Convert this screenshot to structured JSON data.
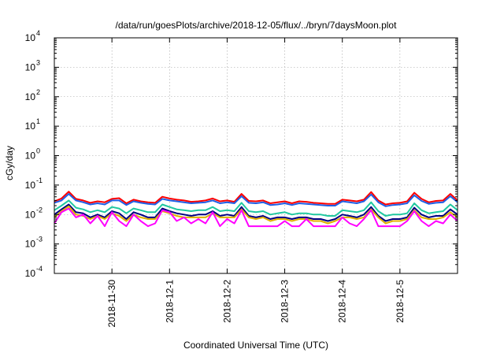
{
  "chart_data": {
    "type": "line",
    "title": "/data/run/goesPlots/archive/2018-12-05/flux/../bryn/7daysMoon.plot",
    "xlabel": "Coordinated Universal Time (UTC)",
    "ylabel": "cGy/day",
    "yscale": "log",
    "ylim": [
      0.0001,
      10000
    ],
    "y_ticks": [
      {
        "value": 0.0001,
        "base": "10",
        "exp": "-4"
      },
      {
        "value": 0.001,
        "base": "10",
        "exp": "-3"
      },
      {
        "value": 0.01,
        "base": "10",
        "exp": "-2"
      },
      {
        "value": 0.1,
        "base": "10",
        "exp": "-1"
      },
      {
        "value": 1,
        "base": "10",
        "exp": "0"
      },
      {
        "value": 10,
        "base": "10",
        "exp": "1"
      },
      {
        "value": 100,
        "base": "10",
        "exp": "2"
      },
      {
        "value": 1000,
        "base": "10",
        "exp": "3"
      },
      {
        "value": 10000,
        "base": "10",
        "exp": "4"
      }
    ],
    "xlim": [
      "2018-11-29T00:00",
      "2018-12-06T00:00"
    ],
    "x_ticks": [
      {
        "value": "2018-11-30T00:00",
        "label": "2018-11-30"
      },
      {
        "value": "2018-12-01T00:00",
        "label": "2018-12-1"
      },
      {
        "value": "2018-12-02T00:00",
        "label": "2018-12-2"
      },
      {
        "value": "2018-12-03T00:00",
        "label": "2018-12-3"
      },
      {
        "value": "2018-12-04T00:00",
        "label": "2018-12-4"
      },
      {
        "value": "2018-12-05T00:00",
        "label": "2018-12-5"
      }
    ],
    "grid": true,
    "x": [
      "2018-11-29T00:00",
      "2018-11-29T03:00",
      "2018-11-29T06:00",
      "2018-11-29T09:00",
      "2018-11-29T12:00",
      "2018-11-29T15:00",
      "2018-11-29T18:00",
      "2018-11-29T21:00",
      "2018-11-30T00:00",
      "2018-11-30T03:00",
      "2018-11-30T06:00",
      "2018-11-30T09:00",
      "2018-11-30T12:00",
      "2018-11-30T15:00",
      "2018-11-30T18:00",
      "2018-11-30T21:00",
      "2018-12-01T00:00",
      "2018-12-01T03:00",
      "2018-12-01T06:00",
      "2018-12-01T09:00",
      "2018-12-01T12:00",
      "2018-12-01T15:00",
      "2018-12-01T18:00",
      "2018-12-01T21:00",
      "2018-12-02T00:00",
      "2018-12-02T03:00",
      "2018-12-02T06:00",
      "2018-12-02T09:00",
      "2018-12-02T12:00",
      "2018-12-02T15:00",
      "2018-12-02T18:00",
      "2018-12-02T21:00",
      "2018-12-03T00:00",
      "2018-12-03T03:00",
      "2018-12-03T06:00",
      "2018-12-03T09:00",
      "2018-12-03T12:00",
      "2018-12-03T15:00",
      "2018-12-03T18:00",
      "2018-12-03T21:00",
      "2018-12-04T00:00",
      "2018-12-04T03:00",
      "2018-12-04T06:00",
      "2018-12-04T09:00",
      "2018-12-04T12:00",
      "2018-12-04T15:00",
      "2018-12-04T18:00",
      "2018-12-04T21:00",
      "2018-12-05T00:00",
      "2018-12-05T03:00",
      "2018-12-05T06:00",
      "2018-12-05T09:00",
      "2018-12-05T12:00",
      "2018-12-05T15:00",
      "2018-12-05T18:00",
      "2018-12-05T21:00",
      "2018-12-06T00:00"
    ],
    "series": [
      {
        "color": "#ff0000",
        "values": [
          0.028,
          0.035,
          0.06,
          0.034,
          0.03,
          0.025,
          0.028,
          0.026,
          0.034,
          0.036,
          0.024,
          0.032,
          0.028,
          0.026,
          0.025,
          0.04,
          0.035,
          0.032,
          0.03,
          0.027,
          0.028,
          0.03,
          0.035,
          0.028,
          0.03,
          0.027,
          0.05,
          0.029,
          0.028,
          0.03,
          0.024,
          0.026,
          0.028,
          0.024,
          0.028,
          0.027,
          0.025,
          0.024,
          0.023,
          0.023,
          0.032,
          0.03,
          0.028,
          0.032,
          0.058,
          0.03,
          0.022,
          0.024,
          0.025,
          0.028,
          0.055,
          0.034,
          0.026,
          0.029,
          0.03,
          0.05,
          0.03
        ]
      },
      {
        "color": "#1e5fe6",
        "values": [
          0.025,
          0.03,
          0.05,
          0.03,
          0.026,
          0.022,
          0.024,
          0.022,
          0.03,
          0.03,
          0.021,
          0.028,
          0.025,
          0.023,
          0.022,
          0.034,
          0.03,
          0.028,
          0.026,
          0.024,
          0.025,
          0.026,
          0.03,
          0.024,
          0.026,
          0.024,
          0.042,
          0.025,
          0.024,
          0.026,
          0.021,
          0.022,
          0.024,
          0.021,
          0.024,
          0.023,
          0.022,
          0.021,
          0.02,
          0.02,
          0.028,
          0.026,
          0.024,
          0.028,
          0.048,
          0.026,
          0.019,
          0.021,
          0.022,
          0.024,
          0.045,
          0.029,
          0.023,
          0.025,
          0.026,
          0.042,
          0.026
        ]
      },
      {
        "color": "#20c8a0",
        "values": [
          0.014,
          0.02,
          0.03,
          0.017,
          0.015,
          0.012,
          0.014,
          0.012,
          0.018,
          0.016,
          0.011,
          0.016,
          0.014,
          0.012,
          0.012,
          0.022,
          0.018,
          0.015,
          0.014,
          0.013,
          0.014,
          0.014,
          0.018,
          0.013,
          0.014,
          0.013,
          0.025,
          0.013,
          0.012,
          0.013,
          0.01,
          0.011,
          0.012,
          0.01,
          0.011,
          0.011,
          0.01,
          0.01,
          0.009,
          0.009,
          0.014,
          0.013,
          0.012,
          0.014,
          0.026,
          0.013,
          0.009,
          0.01,
          0.01,
          0.011,
          0.024,
          0.014,
          0.011,
          0.012,
          0.013,
          0.022,
          0.014
        ]
      },
      {
        "color": "#000080",
        "values": [
          0.01,
          0.015,
          0.022,
          0.012,
          0.011,
          0.008,
          0.01,
          0.008,
          0.013,
          0.011,
          0.007,
          0.012,
          0.01,
          0.008,
          0.008,
          0.016,
          0.013,
          0.011,
          0.01,
          0.009,
          0.01,
          0.01,
          0.013,
          0.009,
          0.01,
          0.009,
          0.018,
          0.009,
          0.008,
          0.009,
          0.007,
          0.008,
          0.008,
          0.007,
          0.008,
          0.008,
          0.007,
          0.007,
          0.006,
          0.007,
          0.01,
          0.009,
          0.008,
          0.01,
          0.018,
          0.009,
          0.006,
          0.007,
          0.007,
          0.008,
          0.017,
          0.01,
          0.008,
          0.009,
          0.009,
          0.015,
          0.01
        ]
      },
      {
        "color": "#e0b000",
        "values": [
          0.008,
          0.013,
          0.019,
          0.01,
          0.009,
          0.007,
          0.009,
          0.007,
          0.011,
          0.009,
          0.006,
          0.01,
          0.008,
          0.007,
          0.007,
          0.013,
          0.011,
          0.009,
          0.008,
          0.008,
          0.008,
          0.008,
          0.011,
          0.008,
          0.008,
          0.008,
          0.015,
          0.008,
          0.007,
          0.008,
          0.006,
          0.007,
          0.007,
          0.006,
          0.007,
          0.007,
          0.006,
          0.006,
          0.005,
          0.006,
          0.008,
          0.008,
          0.007,
          0.008,
          0.015,
          0.008,
          0.005,
          0.006,
          0.006,
          0.007,
          0.014,
          0.008,
          0.007,
          0.007,
          0.008,
          0.012,
          0.008
        ]
      },
      {
        "color": "#ff00ff",
        "values": [
          0.005,
          0.012,
          0.016,
          0.008,
          0.01,
          0.005,
          0.009,
          0.004,
          0.012,
          0.006,
          0.004,
          0.01,
          0.006,
          0.004,
          0.005,
          0.014,
          0.012,
          0.006,
          0.008,
          0.005,
          0.007,
          0.005,
          0.012,
          0.004,
          0.007,
          0.005,
          0.014,
          0.004,
          0.004,
          0.004,
          0.004,
          0.004,
          0.006,
          0.004,
          0.004,
          0.007,
          0.004,
          0.004,
          0.004,
          0.004,
          0.008,
          0.005,
          0.004,
          0.007,
          0.014,
          0.004,
          0.004,
          0.004,
          0.004,
          0.006,
          0.013,
          0.006,
          0.004,
          0.006,
          0.005,
          0.01,
          0.006
        ]
      }
    ]
  }
}
